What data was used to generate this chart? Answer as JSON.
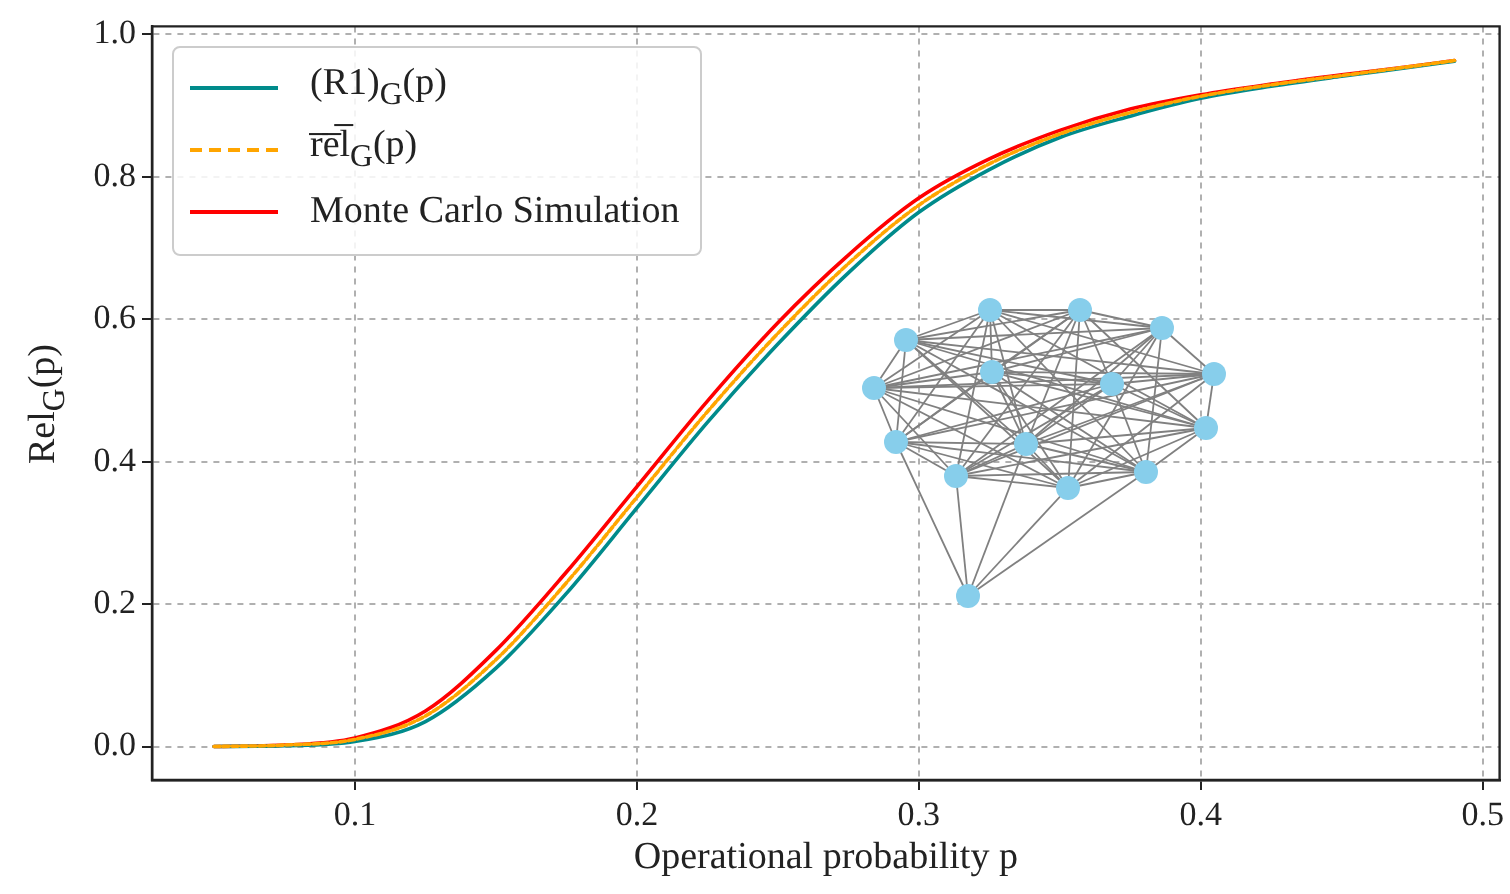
{
  "chart_data": {
    "type": "line",
    "xlabel": "Operational probability p",
    "ylabel": "Rel$_{G}$(p)",
    "x": [
      0.05,
      0.075,
      0.1,
      0.125,
      0.15,
      0.175,
      0.2,
      0.225,
      0.25,
      0.275,
      0.3,
      0.325,
      0.35,
      0.375,
      0.4,
      0.425,
      0.45,
      0.475,
      0.49
    ],
    "series": [
      {
        "name": "(R1)$_{G}$(p)",
        "color": "#008b8b",
        "line_style": "solid",
        "values": [
          0,
          0.001,
          0.007,
          0.035,
          0.11,
          0.215,
          0.335,
          0.455,
          0.565,
          0.665,
          0.75,
          0.81,
          0.855,
          0.885,
          0.91,
          0.927,
          0.941,
          0.954,
          0.962
        ]
      },
      {
        "name": "r̅e̅l̅$_{G}$(p)",
        "color": "#ffa500",
        "line_style": "dashed",
        "values": [
          0,
          0.002,
          0.01,
          0.043,
          0.122,
          0.23,
          0.35,
          0.47,
          0.58,
          0.678,
          0.76,
          0.818,
          0.86,
          0.89,
          0.913,
          0.929,
          0.942,
          0.955,
          0.963
        ]
      },
      {
        "name": "Monte Carlo Simulation",
        "color": "#ff0000",
        "line_style": "solid",
        "values": [
          0,
          0.002,
          0.012,
          0.05,
          0.135,
          0.245,
          0.365,
          0.485,
          0.595,
          0.69,
          0.77,
          0.825,
          0.865,
          0.895,
          0.915,
          0.93,
          0.943,
          0.955,
          0.963
        ]
      }
    ],
    "xlim": [
      0.028,
      0.506
    ],
    "xticks": [
      0.1,
      0.2,
      0.3,
      0.4,
      0.5
    ],
    "ylim": [
      -0.047,
      1.011
    ],
    "yticks": [
      {
        "value": 0,
        "label": "0.0"
      },
      {
        "value": 0.2,
        "label": "0.2"
      },
      {
        "value": 0.4,
        "label": "0.4"
      },
      {
        "value": 0.6,
        "label": "0.6"
      },
      {
        "value": 0.8,
        "label": "0.8"
      },
      {
        "value": 1,
        "label": "1.0"
      }
    ],
    "grid": true,
    "legend": "top left",
    "marker": "none"
  }
}
